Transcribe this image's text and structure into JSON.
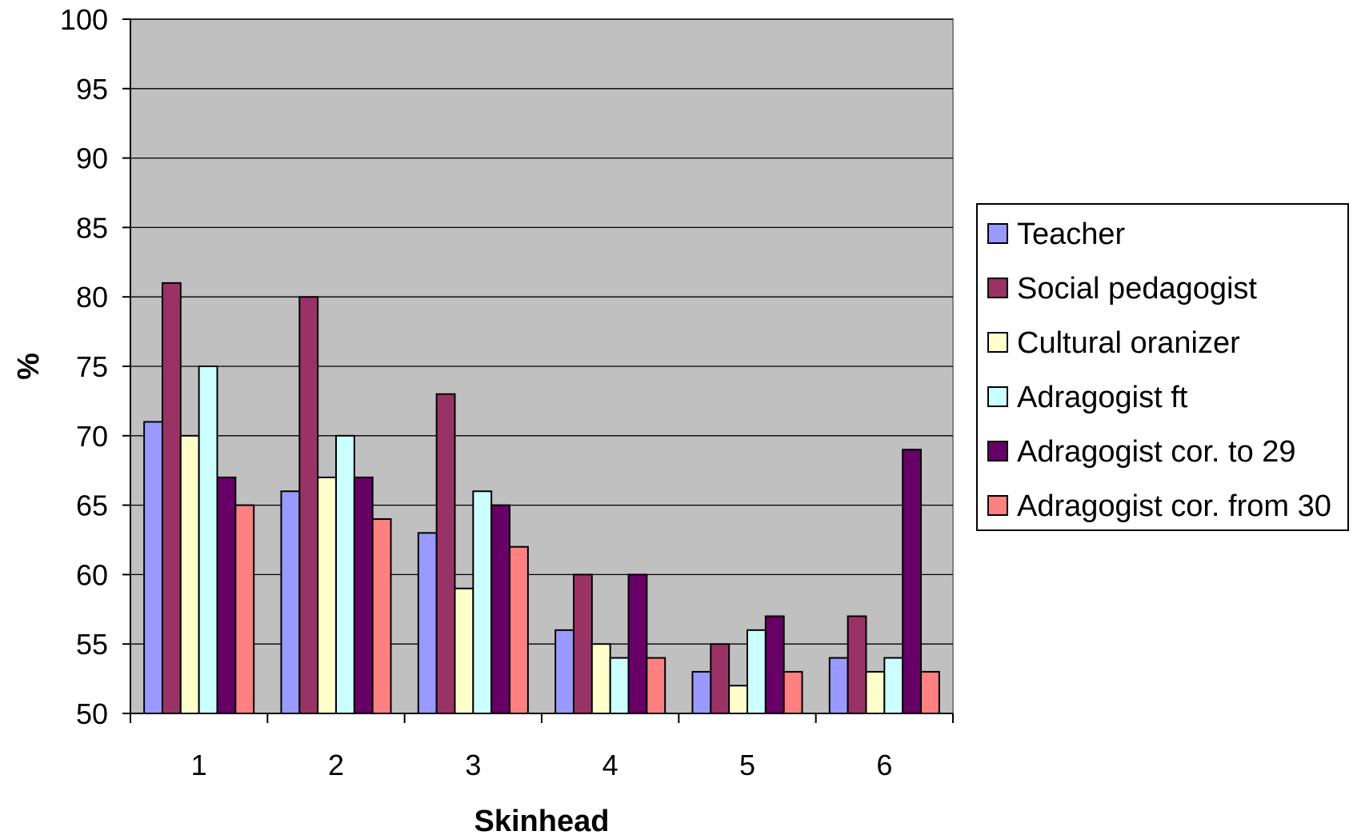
{
  "chart_data": {
    "type": "bar",
    "xlabel": "Skinhead",
    "ylabel": "%",
    "ylim": [
      50,
      100
    ],
    "y_ticks": [
      "50",
      "55",
      "60",
      "65",
      "70",
      "75",
      "80",
      "85",
      "90",
      "95",
      "100"
    ],
    "categories": [
      "1",
      "2",
      "3",
      "4",
      "5",
      "6"
    ],
    "grid": true,
    "legend_position": "right",
    "plot_background": "#c0c0c0",
    "series": [
      {
        "name": "Teacher",
        "color": "#9999ff",
        "values": [
          71,
          66,
          63,
          56,
          53,
          54
        ]
      },
      {
        "name": "Social pedagogist",
        "color": "#993366",
        "values": [
          81,
          80,
          73,
          60,
          55,
          57
        ]
      },
      {
        "name": "Cultural oranizer",
        "color": "#ffffcc",
        "values": [
          70,
          67,
          59,
          55,
          52,
          53
        ]
      },
      {
        "name": "Adragogist ft",
        "color": "#ccffff",
        "values": [
          75,
          70,
          66,
          54,
          56,
          54
        ]
      },
      {
        "name": "Adragogist cor. to 29",
        "color": "#660066",
        "values": [
          67,
          67,
          65,
          60,
          57,
          69
        ]
      },
      {
        "name": "Adragogist cor. from 30",
        "color": "#ff8080",
        "values": [
          65,
          64,
          62,
          54,
          53,
          53
        ]
      }
    ]
  }
}
